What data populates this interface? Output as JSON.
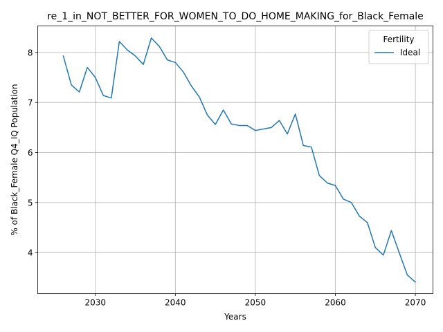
{
  "chart_data": {
    "type": "line",
    "title": "re_1_in_NOT_BETTER_FOR_WOMEN_TO_DO_HOME_MAKING_for_Black_Female",
    "xlabel": "Years",
    "ylabel": "% of Black_Female Q4_IQ Population",
    "xlim": [
      2022.8,
      2072.2
    ],
    "ylim": [
      3.18,
      8.53
    ],
    "xticks": [
      2030,
      2040,
      2050,
      2060,
      2070
    ],
    "yticks": [
      4,
      5,
      6,
      7,
      8
    ],
    "grid": true,
    "legend": {
      "title": "Fertility",
      "placement": "top-right"
    },
    "series": [
      {
        "name": "Ideal",
        "color": "#1f77b4",
        "x": [
          2026,
          2027,
          2028,
          2029,
          2030,
          2031,
          2032,
          2033,
          2034,
          2035,
          2036,
          2037,
          2038,
          2039,
          2040,
          2041,
          2042,
          2043,
          2044,
          2045,
          2046,
          2047,
          2048,
          2049,
          2050,
          2051,
          2052,
          2053,
          2054,
          2055,
          2056,
          2057,
          2058,
          2059,
          2060,
          2061,
          2062,
          2063,
          2064,
          2065,
          2066,
          2067,
          2068,
          2069,
          2070
        ],
        "values": [
          7.93,
          7.35,
          7.21,
          7.7,
          7.5,
          7.14,
          7.09,
          8.22,
          8.05,
          7.93,
          7.76,
          8.29,
          8.12,
          7.85,
          7.8,
          7.61,
          7.33,
          7.11,
          6.75,
          6.56,
          6.85,
          6.57,
          6.54,
          6.54,
          6.44,
          6.47,
          6.5,
          6.64,
          6.37,
          6.77,
          6.14,
          6.11,
          5.54,
          5.39,
          5.34,
          5.07,
          5.0,
          4.73,
          4.6,
          4.1,
          3.95,
          4.44,
          3.99,
          3.55,
          3.41
        ]
      }
    ]
  }
}
